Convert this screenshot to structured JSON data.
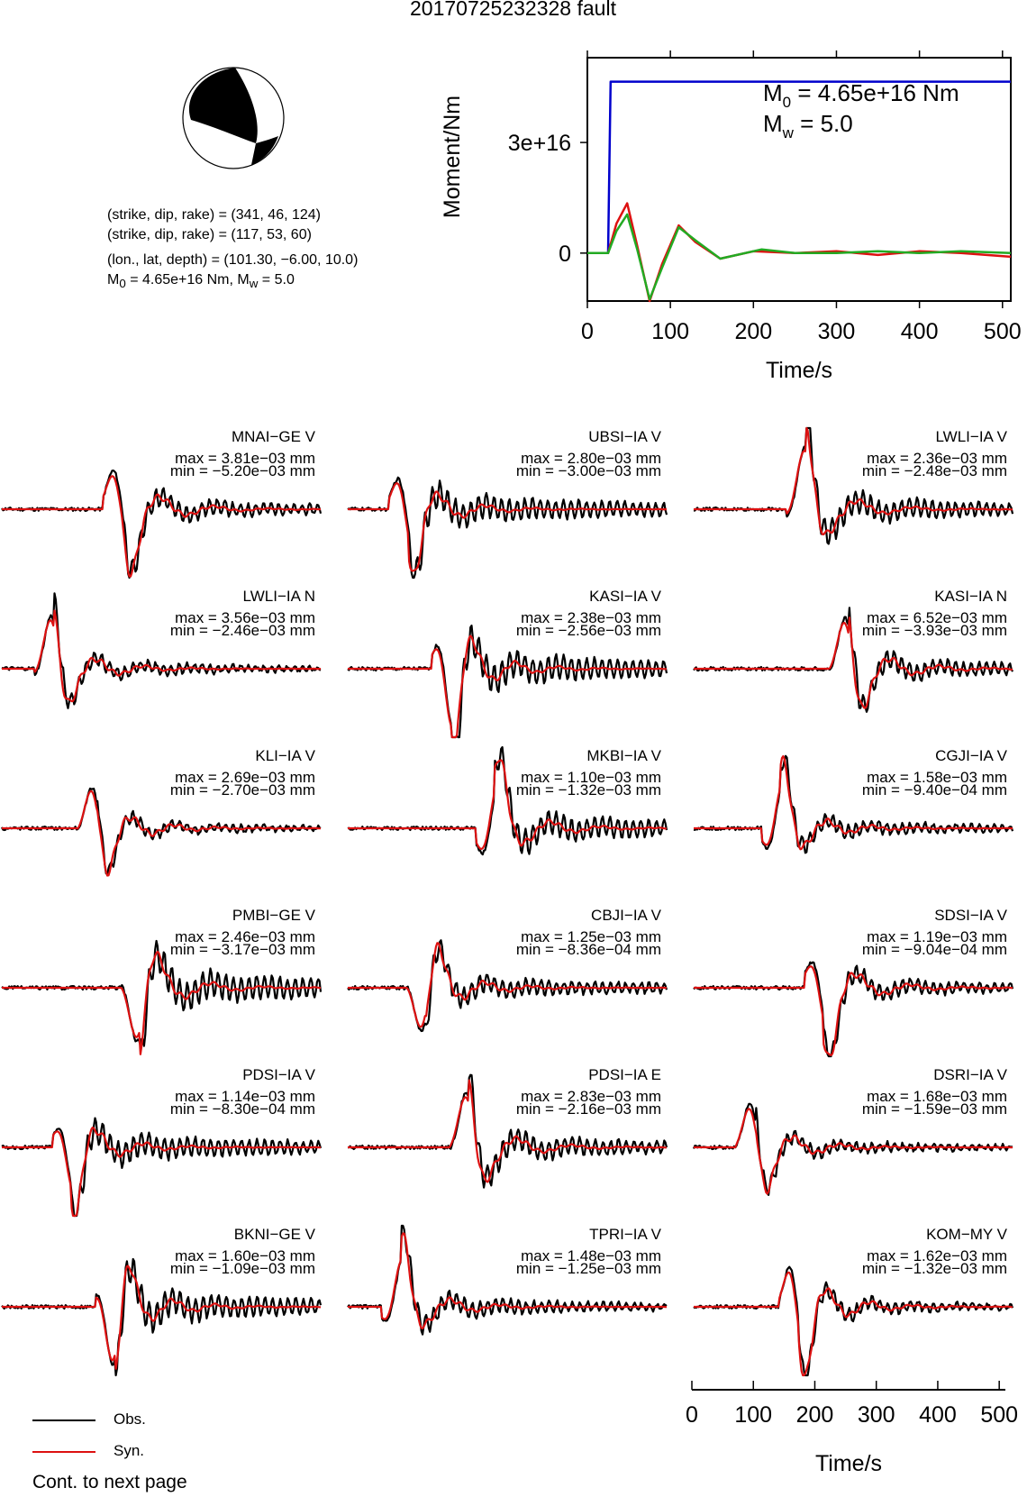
{
  "title": "20170725232328 fault",
  "mechanism": {
    "plane1": "(strike, dip, rake) = (341, 46, 124)",
    "plane2": "(strike, dip, rake) = (117, 53, 60)",
    "location": "(lon., lat, depth) = (101.30, −6.00, 10.0)",
    "moment_prefix": "M",
    "moment_sub": "0",
    "moment_mid": " = 4.65e+16 Nm, M",
    "moment_sub2": "w",
    "moment_suffix": " = 5.0"
  },
  "colors": {
    "obs": "#000000",
    "syn": "#dd1111",
    "moment": "#0000cc",
    "stf": "#22aa22"
  },
  "legend": {
    "obs_label": "Obs.",
    "syn_label": "Syn."
  },
  "footer": {
    "note": "Cont. to next page"
  },
  "chart_data": [
    {
      "type": "line",
      "xlabel": "Time/s",
      "ylabel": "Moment/Nm",
      "xlim": [
        0,
        510
      ],
      "ylim": [
        -1.3e+16,
        5.3e+16
      ],
      "xticks": [
        "0",
        "100",
        "200",
        "300",
        "400",
        "500"
      ],
      "yticks": [
        "0",
        "3e+16"
      ],
      "annotation_m0": "M",
      "annotation_m0_sub": "0",
      "annotation_m0_val": " = 4.65e+16 Nm",
      "annotation_mw": "M",
      "annotation_mw_sub": "w",
      "annotation_mw_val": " = 5.0",
      "series": [
        {
          "x": [
            0,
            25,
            28,
            510
          ],
          "y": [
            0,
            0,
            4.65e+16,
            4.65e+16
          ]
        },
        {
          "x": [
            0,
            25,
            35,
            48,
            60,
            75,
            90,
            110,
            130,
            160,
            200,
            250,
            300,
            350,
            400,
            450,
            510
          ],
          "y": [
            0,
            0,
            8000000000000000.0,
            1.35e+16,
            2000000000000000.0,
            -1.3e+16,
            -3000000000000000.0,
            7500000000000000.0,
            3000000000000000.0,
            -1500000000000000.0,
            500000000000000.0,
            0,
            500000000000000.0,
            -500000000000000.0,
            500000000000000.0,
            0,
            -1000000000000000.0
          ]
        },
        {
          "x": [
            0,
            25,
            35,
            48,
            60,
            75,
            90,
            110,
            130,
            160,
            210,
            250,
            300,
            350,
            400,
            450,
            510
          ],
          "y": [
            0,
            0,
            6000000000000000.0,
            1.05e+16,
            1000000000000000.0,
            -1.25e+16,
            -4000000000000000.0,
            7000000000000000.0,
            3500000000000000.0,
            -1500000000000000.0,
            1000000000000000.0,
            0,
            0,
            500000000000000.0,
            0,
            500000000000000.0,
            0
          ]
        }
      ]
    },
    {
      "type": "line",
      "stations": [
        {
          "name": "MNAI−GE V",
          "max": "max = 3.81e−03 mm",
          "min": "min = −5.20e−03 mm"
        },
        {
          "name": "UBSI−IA V",
          "max": "max = 2.80e−03 mm",
          "min": "min = −3.00e−03 mm"
        },
        {
          "name": "LWLI−IA V",
          "max": "max = 2.36e−03 mm",
          "min": "min = −2.48e−03 mm"
        },
        {
          "name": "LWLI−IA N",
          "max": "max = 3.56e−03 mm",
          "min": "min = −2.46e−03 mm"
        },
        {
          "name": "KASI−IA V",
          "max": "max = 2.38e−03 mm",
          "min": "min = −2.56e−03 mm"
        },
        {
          "name": "KASI−IA N",
          "max": "max = 6.52e−03 mm",
          "min": "min = −3.93e−03 mm"
        },
        {
          "name": "KLI−IA V",
          "max": "max = 2.69e−03 mm",
          "min": "min = −2.70e−03 mm"
        },
        {
          "name": "MKBI−IA V",
          "max": "max = 1.10e−03 mm",
          "min": "min = −1.32e−03 mm"
        },
        {
          "name": "CGJI−IA V",
          "max": "max = 1.58e−03 mm",
          "min": "min = −9.40e−04 mm"
        },
        {
          "name": "PMBI−GE V",
          "max": "max = 2.46e−03 mm",
          "min": "min = −3.17e−03 mm"
        },
        {
          "name": "CBJI−IA V",
          "max": "max = 1.25e−03 mm",
          "min": "min = −8.36e−04 mm"
        },
        {
          "name": "SDSI−IA V",
          "max": "max = 1.19e−03 mm",
          "min": "min = −9.04e−04 mm"
        },
        {
          "name": "PDSI−IA V",
          "max": "max = 1.14e−03 mm",
          "min": "min = −8.30e−04 mm"
        },
        {
          "name": "PDSI−IA E",
          "max": "max = 2.83e−03 mm",
          "min": "min = −2.16e−03 mm"
        },
        {
          "name": "DSRI−IA V",
          "max": "max = 1.68e−03 mm",
          "min": "min = −1.59e−03 mm"
        },
        {
          "name": "BKNI−GE V",
          "max": "max = 1.60e−03 mm",
          "min": "min = −1.09e−03 mm"
        },
        {
          "name": "TPRI−IA V",
          "max": "max = 1.48e−03 mm",
          "min": "min = −1.25e−03 mm"
        },
        {
          "name": "KOM−MY V",
          "max": "max = 1.62e−03 mm",
          "min": "min = −1.32e−03 mm"
        }
      ],
      "xlabel": "Time/s",
      "xlim": [
        0,
        510
      ],
      "xticks": [
        "0",
        "100",
        "200",
        "300",
        "400",
        "500"
      ]
    }
  ]
}
